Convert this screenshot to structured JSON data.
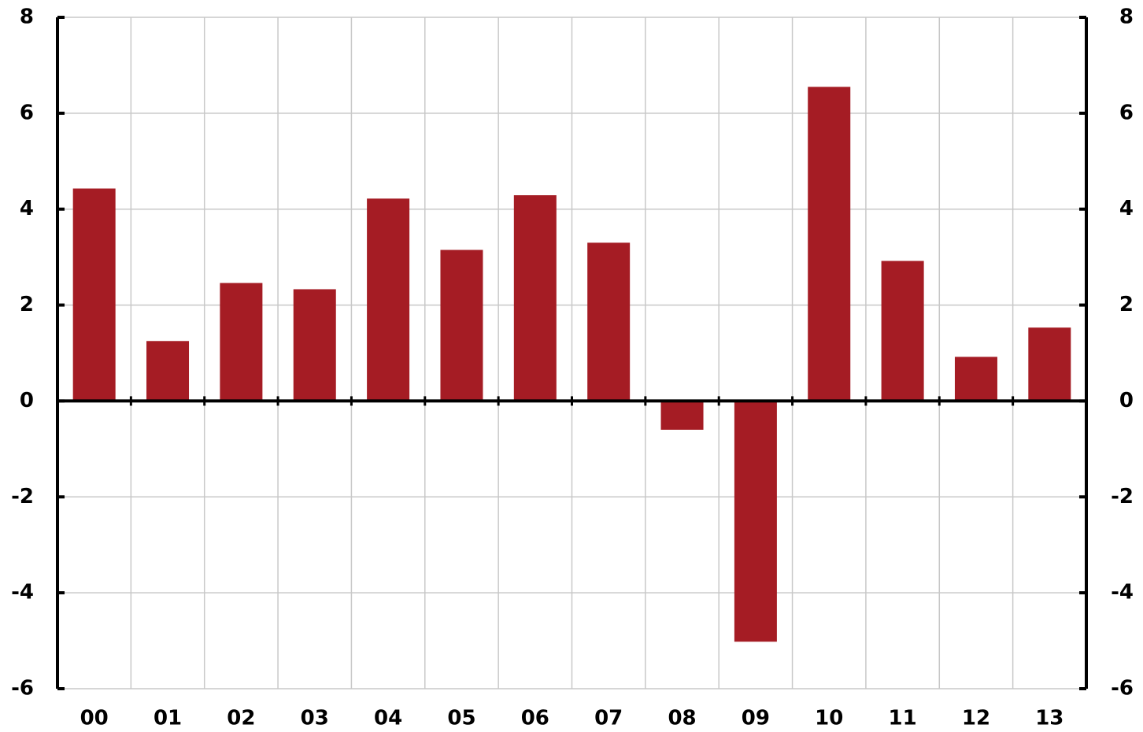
{
  "chart_data": {
    "type": "bar",
    "categories": [
      "00",
      "01",
      "02",
      "03",
      "04",
      "05",
      "06",
      "07",
      "08",
      "09",
      "10",
      "11",
      "12",
      "13"
    ],
    "values": [
      4.43,
      1.25,
      2.46,
      2.33,
      4.22,
      3.15,
      4.29,
      3.3,
      -0.6,
      -5.02,
      6.55,
      2.92,
      0.92,
      1.53
    ],
    "color": "#a51c24",
    "ylim": [
      -6,
      8
    ],
    "yticks": [
      -6,
      -4,
      -2,
      0,
      2,
      4,
      6,
      8
    ],
    "y2lim": [
      -6,
      8
    ],
    "y2ticks": [
      -6,
      -4,
      -2,
      0,
      2,
      4,
      6,
      8
    ],
    "grid": true
  }
}
